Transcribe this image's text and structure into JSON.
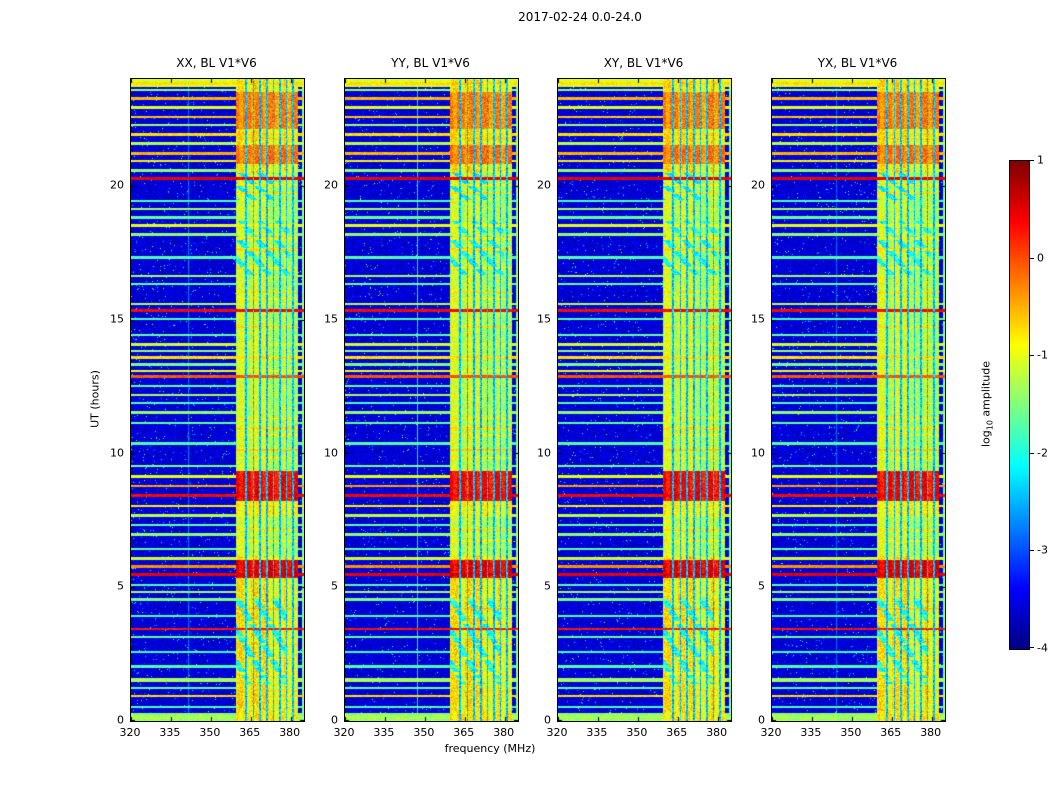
{
  "figure": {
    "title": "2017-02-24 0.0-24.0"
  },
  "chart_data": {
    "type": "heatmap",
    "title": "2017-02-24 0.0-24.0",
    "panels": [
      {
        "key": "xx",
        "title": "XX, BL V1*V6"
      },
      {
        "key": "yy",
        "title": "YY, BL V1*V6"
      },
      {
        "key": "xy",
        "title": "XY, BL V1*V6"
      },
      {
        "key": "yx",
        "title": "YX, BL V1*V6"
      }
    ],
    "x_axis": {
      "label": "frequency (MHz)",
      "min": 320,
      "max": 385,
      "ticks": [
        320,
        335,
        350,
        365,
        380
      ]
    },
    "y_axis": {
      "label": "UT (hours)",
      "min": 0,
      "max": 24,
      "ticks": [
        0,
        5,
        10,
        15,
        20
      ]
    },
    "colorbar": {
      "label_log": "log",
      "label_sub": "10",
      "label_rest": " amplitude",
      "min": -4,
      "max": 1,
      "ticks": [
        1,
        0,
        -1,
        -2,
        -3,
        -4
      ],
      "colormap": "jet"
    },
    "features": {
      "background_level": -3.85,
      "band": {
        "f0": 359.2,
        "f1": 382.4,
        "bright": [
          [
            359.6,
            362.2
          ],
          [
            364.8,
            367.6
          ],
          [
            369.2,
            371.6
          ],
          [
            377.2,
            378.8
          ]
        ],
        "notches": [
          363.1,
          365.9,
          368.3,
          370.9,
          373.4,
          375.9,
          378.2,
          380.6
        ],
        "level_low": -1.75,
        "level_high": -1.45
      },
      "edge_stripe_f": 384.2,
      "blocks": [
        {
          "t0": 5.35,
          "t1": 6.05,
          "level": 0.25
        },
        {
          "t0": 8.25,
          "t1": 9.35,
          "level": 0.15
        },
        {
          "t0": 20.85,
          "t1": 21.55,
          "level": -0.45
        },
        {
          "t0": 22.15,
          "t1": 23.55,
          "level": -0.5
        },
        {
          "t0": 0.0,
          "t1": 0.4,
          "level": -1.0
        },
        {
          "t0": 7.7,
          "t1": 8.2,
          "level": -1.1
        }
      ],
      "streaks": [
        {
          "t0": 1.4,
          "t1": 4.6,
          "f0": 358.5,
          "f1": 377.0,
          "level": -2.45
        },
        {
          "t0": 16.6,
          "t1": 18.7,
          "f0": 360.0,
          "f1": 378.5,
          "level": -2.45
        },
        {
          "t0": 19.5,
          "t1": 20.5,
          "f0": 360.0,
          "f1": 372.0,
          "level": -2.55
        }
      ],
      "lines": [
        [
          0.15,
          -1.5,
          0.08
        ],
        [
          0.55,
          -1.9,
          0.07
        ],
        [
          0.95,
          -0.9,
          0.07
        ],
        [
          1.25,
          -1.8,
          0.07
        ],
        [
          1.55,
          -1.5,
          0.11
        ],
        [
          2.05,
          -1.9,
          0.07
        ],
        [
          2.6,
          -2.0,
          0.07
        ],
        [
          3.15,
          -1.8,
          0.07
        ],
        [
          3.45,
          0.1,
          0.07
        ],
        [
          3.95,
          -1.9,
          0.07
        ],
        [
          4.55,
          -1.7,
          0.09
        ],
        [
          4.85,
          -1.5,
          0.07
        ],
        [
          5.1,
          -1.9,
          0.07
        ],
        [
          5.5,
          0.3,
          0.09
        ],
        [
          5.8,
          -0.5,
          0.07
        ],
        [
          6.1,
          -1.3,
          0.09
        ],
        [
          6.45,
          -1.8,
          0.07
        ],
        [
          7.0,
          -1.6,
          0.07
        ],
        [
          7.35,
          -1.8,
          0.07
        ],
        [
          7.7,
          -1.4,
          0.07
        ],
        [
          8.05,
          -1.0,
          0.07
        ],
        [
          8.45,
          0.2,
          0.08
        ],
        [
          8.8,
          -0.6,
          0.07
        ],
        [
          9.15,
          -1.2,
          0.07
        ],
        [
          9.55,
          -1.7,
          0.07
        ],
        [
          10.4,
          -1.9,
          0.07
        ],
        [
          11.15,
          -1.8,
          0.07
        ],
        [
          11.55,
          -1.6,
          0.07
        ],
        [
          11.9,
          -1.9,
          0.07
        ],
        [
          12.2,
          -1.5,
          0.07
        ],
        [
          12.55,
          -1.8,
          0.07
        ],
        [
          12.9,
          -0.2,
          0.07
        ],
        [
          13.1,
          -1.1,
          0.07
        ],
        [
          13.35,
          -1.7,
          0.07
        ],
        [
          13.6,
          -0.9,
          0.07
        ],
        [
          13.85,
          -1.6,
          0.07
        ],
        [
          14.1,
          -1.3,
          0.07
        ],
        [
          14.45,
          -1.8,
          0.07
        ],
        [
          15.05,
          -1.9,
          0.07
        ],
        [
          15.35,
          0.2,
          0.08
        ],
        [
          15.6,
          -1.4,
          0.07
        ],
        [
          16.35,
          -1.8,
          0.07
        ],
        [
          16.65,
          -1.5,
          0.07
        ],
        [
          17.35,
          -1.9,
          0.07
        ],
        [
          18.2,
          -1.6,
          0.07
        ],
        [
          18.55,
          -1.2,
          0.07
        ],
        [
          18.85,
          -1.8,
          0.07
        ],
        [
          19.15,
          -1.5,
          0.07
        ],
        [
          19.45,
          -1.9,
          0.07
        ],
        [
          20.3,
          0.3,
          0.08
        ],
        [
          20.6,
          -1.6,
          0.07
        ],
        [
          20.95,
          -1.0,
          0.07
        ],
        [
          21.25,
          -0.7,
          0.09
        ],
        [
          21.6,
          -1.4,
          0.07
        ],
        [
          21.95,
          -0.9,
          0.07
        ],
        [
          22.3,
          -1.5,
          0.07
        ],
        [
          22.6,
          -0.8,
          0.07
        ],
        [
          22.95,
          -1.2,
          0.07
        ],
        [
          23.3,
          -0.7,
          0.09
        ],
        [
          23.6,
          -1.5,
          0.07
        ],
        [
          23.85,
          -0.9,
          0.09
        ]
      ],
      "band_lines": [
        [
          0.7,
          -1.0
        ],
        [
          1.15,
          -0.9
        ],
        [
          1.8,
          -1.1
        ],
        [
          2.35,
          -1.0
        ],
        [
          2.9,
          -0.9
        ],
        [
          3.7,
          -1.0
        ],
        [
          4.2,
          -0.8
        ],
        [
          6.75,
          -1.0
        ],
        [
          7.15,
          -0.9
        ],
        [
          9.85,
          -1.0
        ],
        [
          10.15,
          -0.8
        ],
        [
          10.7,
          -1.0
        ],
        [
          10.95,
          -0.9
        ],
        [
          11.35,
          -1.0
        ],
        [
          14.75,
          -0.9
        ],
        [
          15.8,
          -1.0
        ],
        [
          16.05,
          -0.9
        ],
        [
          16.95,
          -1.0
        ],
        [
          17.65,
          -0.9
        ],
        [
          18.05,
          -1.0
        ],
        [
          19.75,
          -0.9
        ],
        [
          20.05,
          -1.0
        ],
        [
          21.05,
          -0.8
        ],
        [
          21.8,
          -0.9
        ],
        [
          22.45,
          -0.8
        ],
        [
          23.15,
          -0.9
        ]
      ],
      "vertical_lines": [
        {
          "panel": 0,
          "f": 341.5,
          "level": -3.0
        },
        {
          "panel": 1,
          "f": 347.0,
          "level": -2.4
        },
        {
          "panel": 3,
          "f": 344.0,
          "level": -3.05
        }
      ]
    }
  }
}
